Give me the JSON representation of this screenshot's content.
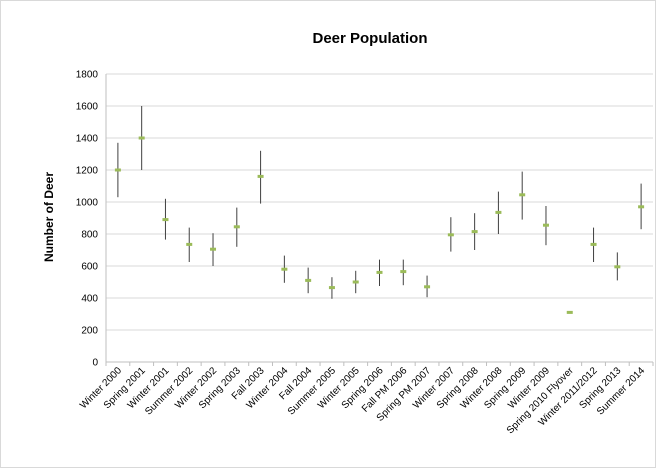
{
  "chart_data": {
    "type": "scatter",
    "title": "Deer Population",
    "xlabel": "",
    "ylabel": "Number of Deer",
    "ylim": [
      0,
      1800
    ],
    "yticks": [
      0,
      200,
      400,
      600,
      800,
      1000,
      1200,
      1400,
      1600,
      1800
    ],
    "grid": true,
    "legend": "none",
    "marker_color": "#9bbb59",
    "errorbar_color": "#404040",
    "categories": [
      "Winter 2000",
      "Spring 2001",
      "Winter 2001",
      "Summer 2002",
      "Winter 2002",
      "Spring 2003",
      "Fall 2003",
      "Winter 2004",
      "Fall 2004",
      "Summer 2005",
      "Winter 2005",
      "Spring 2006",
      "Fall PM 2006",
      "Spring PM 2007",
      "Winter 2007",
      "Spring 2008",
      "Winter 2008",
      "Spring 2009",
      "Winter 2009",
      "Spring 2010 Flyover",
      "Winter 2011/2012",
      "Spring 2013",
      "Summer 2014"
    ],
    "values": [
      1200,
      1400,
      890,
      735,
      705,
      845,
      1160,
      580,
      510,
      465,
      500,
      560,
      565,
      470,
      795,
      815,
      935,
      1045,
      855,
      310,
      735,
      595,
      970
    ],
    "lower": [
      1030,
      1200,
      765,
      625,
      600,
      720,
      990,
      495,
      430,
      395,
      430,
      475,
      480,
      405,
      690,
      700,
      800,
      890,
      730,
      null,
      625,
      510,
      830
    ],
    "upper": [
      1370,
      1600,
      1020,
      840,
      805,
      965,
      1320,
      665,
      590,
      530,
      570,
      640,
      640,
      540,
      905,
      930,
      1065,
      1190,
      975,
      null,
      840,
      685,
      1115
    ]
  }
}
